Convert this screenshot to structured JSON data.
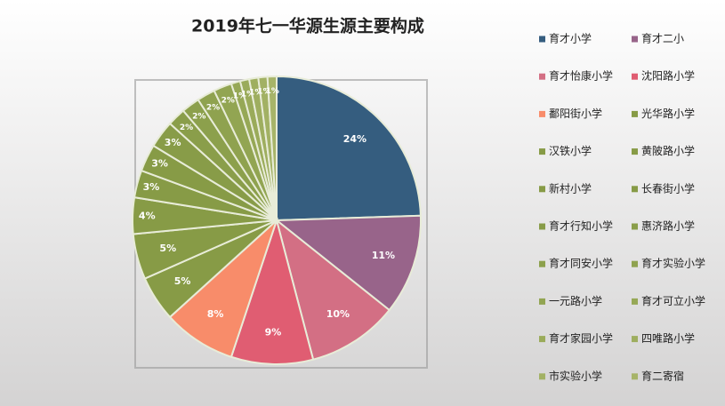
{
  "chart_data": {
    "type": "pie",
    "title": "2019年七一华源生源主要构成",
    "categories": [
      "育才小学",
      "育才二小",
      "育才怡康小学",
      "沈阳路小学",
      "鄱阳街小学",
      "光华路小学",
      "汉铁小学",
      "黄陂路小学",
      "新村小学",
      "长春街小学",
      "育才行知小学",
      "惠济路小学",
      "育才同安小学",
      "育才实验小学",
      "一元路小学",
      "育才可立小学",
      "育才家园小学",
      "四唯路小学",
      "市实验小学",
      "育二寄宿"
    ],
    "values": [
      24,
      11,
      10,
      9,
      8,
      5,
      5,
      4,
      3,
      3,
      3,
      2,
      2,
      2,
      2,
      1,
      1,
      1,
      1,
      1
    ],
    "value_labels": [
      "24%",
      "11%",
      "10%",
      "9%",
      "8%",
      "5%",
      "5%",
      "4%",
      "3%",
      "3%",
      "3%",
      "2%",
      "2%",
      "2%",
      "2%",
      "1%",
      "1%",
      "1%",
      "1%",
      "1%"
    ],
    "colors": [
      "#355d7f",
      "#98648a",
      "#d36f84",
      "#e05d72",
      "#f88c6a",
      "#879b46",
      "#879b46",
      "#879b46",
      "#879b46",
      "#879b46",
      "#889c48",
      "#8a9e4a",
      "#8ca04c",
      "#8fa24f",
      "#92a552",
      "#96a856",
      "#9aab5a",
      "#9eae5f",
      "#a2b164",
      "#a7b469"
    ],
    "legend": "right"
  }
}
